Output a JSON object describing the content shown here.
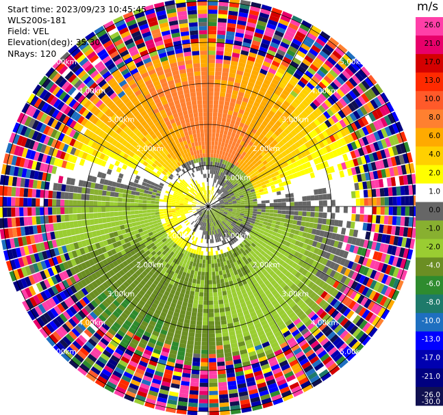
{
  "header": {
    "start_time": "Start time: 2023/09/23 10:45:45",
    "instrument": "WLS200s-181",
    "field": "Field: VEL",
    "elevation": "Elevation(deg): 35.30",
    "nrays": "NRays: 120"
  },
  "colorbar": {
    "unit": "m/s",
    "ticks": [
      "26.0",
      "21.0",
      "17.0",
      "13.0",
      "10.0",
      "8.0",
      "6.0",
      "4.0",
      "2.0",
      "1.0",
      "0.0",
      "-1.0",
      "-2.0",
      "-4.0",
      "-6.0",
      "-8.0",
      "-10.0",
      "-13.0",
      "-17.0",
      "-21.0",
      "-26.0",
      "-30.0"
    ],
    "colors": [
      "#ff3fa8",
      "#e8006a",
      "#d40000",
      "#ff2a00",
      "#ff5a2a",
      "#ff8030",
      "#ffaa00",
      "#ffd000",
      "#ffff00",
      "#ffffff",
      "#666666",
      "#88b030",
      "#9acd32",
      "#6b8e23",
      "#2e8b2e",
      "#1e7a6a",
      "#1e6fc0",
      "#0000ff",
      "#0000b0",
      "#000080",
      "#101050"
    ],
    "tick_colors": [
      "#000000",
      "#000000",
      "#000000",
      "#000000",
      "#000000",
      "#000000",
      "#000000",
      "#000000",
      "#000000",
      "#000000",
      "#000000",
      "#000000",
      "#000000",
      "#ffffff",
      "#ffffff",
      "#ffffff",
      "#ffffff",
      "#ffffff",
      "#ffffff",
      "#ffffff",
      "#ffffff",
      "#ffffff"
    ]
  },
  "chart_data": {
    "type": "heatmap",
    "projection": "polar PPI",
    "field": "VEL",
    "units": "m/s",
    "nrays": 120,
    "range_ring_labels": [
      "1.00km",
      "2.00km",
      "3.00km",
      "4.00km",
      "5.00km"
    ],
    "range_rings_km": [
      1,
      2,
      3,
      4,
      5
    ],
    "value_range": [
      -30,
      30
    ],
    "pattern_note": "near-field: positive Doppler velocities (2-6 m/s) to the north, negative (-1 to -6 m/s) to the south; beyond about 3.5 km the field is noise"
  }
}
